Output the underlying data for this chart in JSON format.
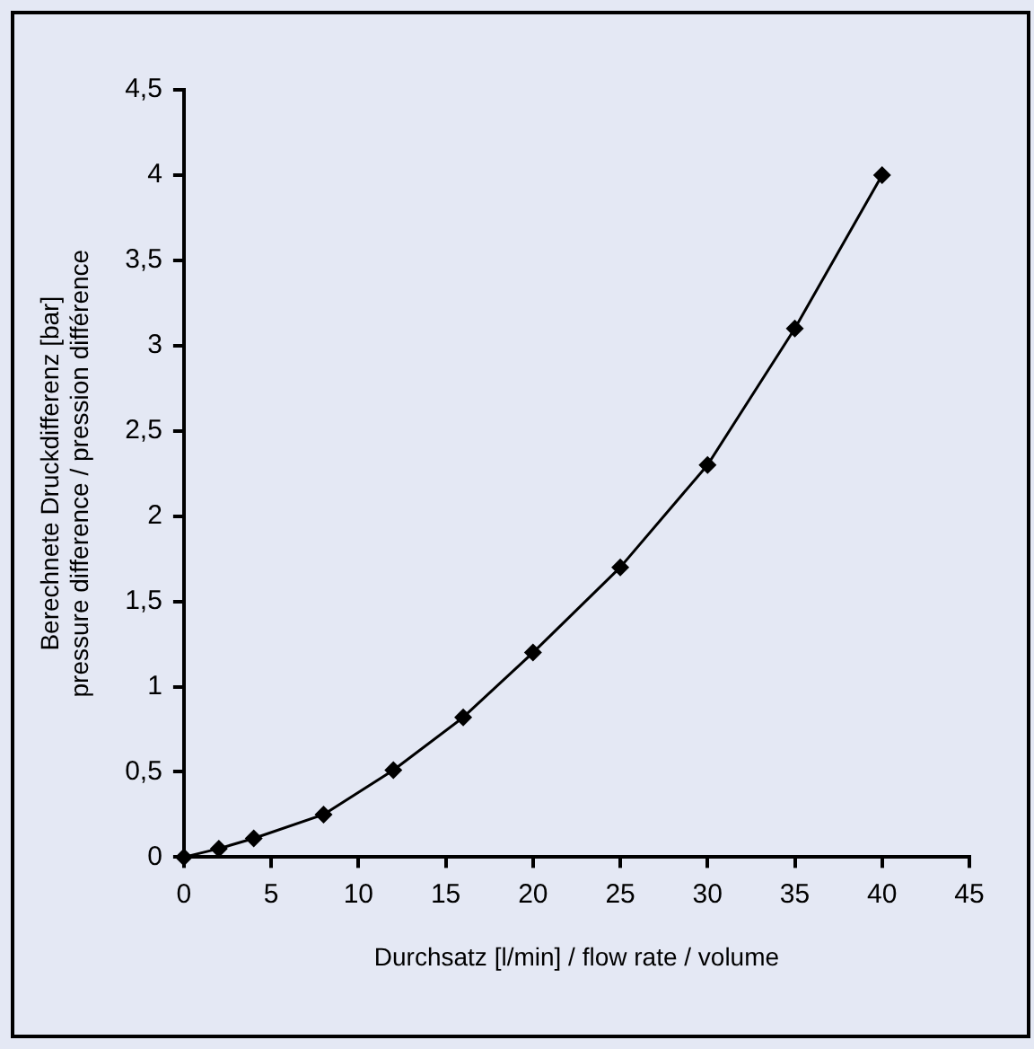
{
  "chart_data": {
    "type": "line",
    "xlabel": "Durchsatz [l/min] / flow rate / volume",
    "ylabel": "Berechnete Druckdifferenz [bar]\npressure difference / pression différence",
    "x": [
      0,
      2,
      4,
      8,
      12,
      16,
      20,
      25,
      30,
      35,
      40
    ],
    "series": [
      {
        "color": "#000000",
        "values": [
          0,
          0.05,
          0.11,
          0.25,
          0.51,
          0.82,
          1.2,
          1.7,
          2.3,
          3.1,
          4
        ]
      }
    ],
    "xlim": [
      0,
      45
    ],
    "xticks": [
      0,
      5,
      10,
      15,
      20,
      25,
      30,
      35,
      40,
      45
    ],
    "ylim": [
      0,
      4.5
    ],
    "yticks": [
      0,
      {
        "value": 0.5,
        "label": "0,5"
      },
      1,
      {
        "value": 1.5,
        "label": "1,5"
      },
      2,
      {
        "value": 2.5,
        "label": "2,5"
      },
      3,
      {
        "value": 3.5,
        "label": "3,5"
      },
      4,
      {
        "value": 4.5,
        "label": "4,5"
      }
    ],
    "grid": false,
    "legend": false,
    "marker": "diamond",
    "line_style": "solid"
  }
}
